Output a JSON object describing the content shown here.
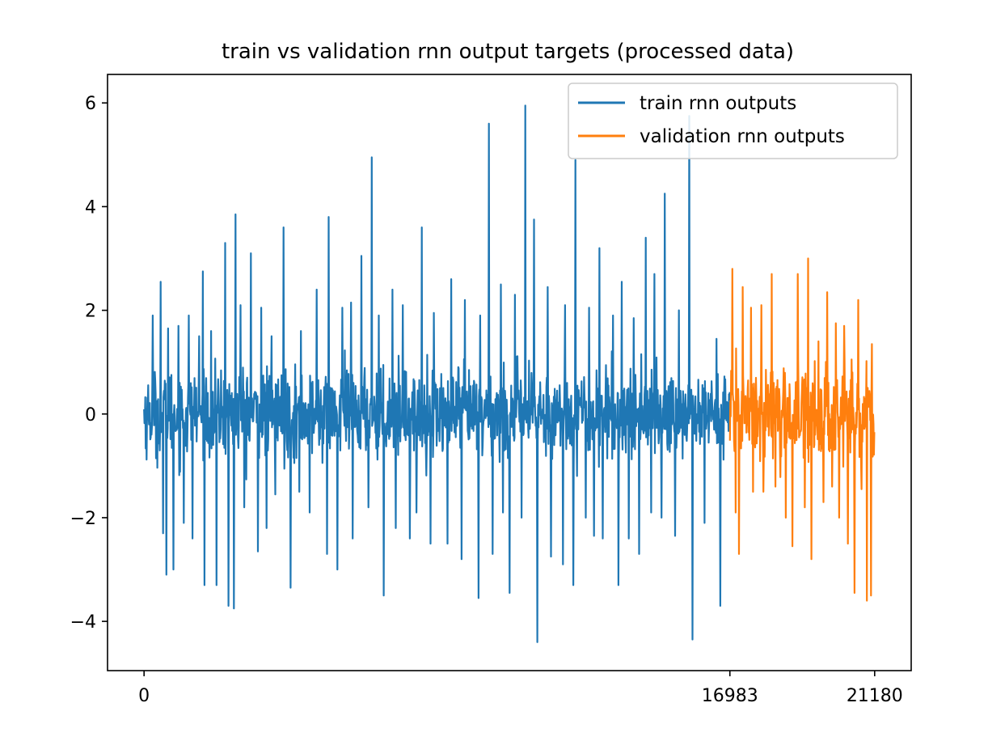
{
  "chart_data": {
    "type": "line",
    "title": "train vs validation rnn output targets (processed data)",
    "xlabel": "",
    "ylabel": "",
    "xlim": [
      -1059,
      22239
    ],
    "ylim": [
      -4.95,
      6.55
    ],
    "x_ticks": [
      0,
      16983,
      21180
    ],
    "y_ticks": [
      -4,
      -2,
      0,
      2,
      4,
      6
    ],
    "y_tick_labels": [
      "−4",
      "−2",
      "0",
      "2",
      "4",
      "6"
    ],
    "x_tick_labels": [
      "0",
      "16983",
      "21180"
    ],
    "grid": false,
    "legend": "top-right",
    "series": [
      {
        "name": "train rnn outputs",
        "color": "#1f77b4",
        "x_start": 0,
        "x_end": 16983,
        "noise_std": 0.75,
        "peaks": [
          [
            250,
            1.9
          ],
          [
            480,
            2.55
          ],
          [
            700,
            1.65
          ],
          [
            1000,
            1.7
          ],
          [
            1300,
            1.9
          ],
          [
            1600,
            1.5
          ],
          [
            1700,
            2.75
          ],
          [
            1950,
            1.6
          ],
          [
            2350,
            3.3
          ],
          [
            2650,
            3.85
          ],
          [
            2800,
            2.1
          ],
          [
            3100,
            3.1
          ],
          [
            3400,
            2.05
          ],
          [
            3700,
            1.5
          ],
          [
            4050,
            3.6
          ],
          [
            4250,
            2.5
          ],
          [
            4550,
            1.6
          ],
          [
            5000,
            2.4
          ],
          [
            5350,
            3.8
          ],
          [
            5750,
            2.05
          ],
          [
            6000,
            2.15
          ],
          [
            6300,
            3.05
          ],
          [
            6600,
            4.95
          ],
          [
            6800,
            1.9
          ],
          [
            7200,
            2.4
          ],
          [
            7500,
            2.1
          ],
          [
            8050,
            3.6
          ],
          [
            8400,
            1.95
          ],
          [
            8900,
            2.6
          ],
          [
            9300,
            2.2
          ],
          [
            9750,
            1.9
          ],
          [
            10000,
            5.6
          ],
          [
            10350,
            2.5
          ],
          [
            10750,
            2.3
          ],
          [
            11050,
            5.95
          ],
          [
            11300,
            3.75
          ],
          [
            11700,
            2.45
          ],
          [
            12200,
            2.1
          ],
          [
            12500,
            4.9
          ],
          [
            12900,
            2.05
          ],
          [
            13200,
            3.2
          ],
          [
            13600,
            1.9
          ],
          [
            13850,
            2.55
          ],
          [
            14200,
            1.85
          ],
          [
            14550,
            3.4
          ],
          [
            14800,
            2.7
          ],
          [
            15100,
            4.25
          ],
          [
            15500,
            2.0
          ],
          [
            15800,
            5.75
          ],
          [
            16250,
            1.7
          ],
          [
            16600,
            1.45
          ]
        ],
        "troughs": [
          [
            550,
            -2.3
          ],
          [
            650,
            -3.1
          ],
          [
            850,
            -3.0
          ],
          [
            1150,
            -2.1
          ],
          [
            1400,
            -2.4
          ],
          [
            1750,
            -3.3
          ],
          [
            2100,
            -3.3
          ],
          [
            2450,
            -3.7
          ],
          [
            2600,
            -3.75
          ],
          [
            2900,
            -1.8
          ],
          [
            3300,
            -2.65
          ],
          [
            3550,
            -2.2
          ],
          [
            3800,
            -1.55
          ],
          [
            4250,
            -3.35
          ],
          [
            4500,
            -1.5
          ],
          [
            4800,
            -1.9
          ],
          [
            5300,
            -2.7
          ],
          [
            5600,
            -3.0
          ],
          [
            6050,
            -2.4
          ],
          [
            6500,
            -1.8
          ],
          [
            6950,
            -3.5
          ],
          [
            7300,
            -2.2
          ],
          [
            7700,
            -2.4
          ],
          [
            7900,
            -1.9
          ],
          [
            8300,
            -2.5
          ],
          [
            8800,
            -2.5
          ],
          [
            9200,
            -2.8
          ],
          [
            9700,
            -3.55
          ],
          [
            10100,
            -2.7
          ],
          [
            10400,
            -1.9
          ],
          [
            10600,
            -3.45
          ],
          [
            10950,
            -2.0
          ],
          [
            11400,
            -4.4
          ],
          [
            11800,
            -2.75
          ],
          [
            12150,
            -2.9
          ],
          [
            12450,
            -3.3
          ],
          [
            12800,
            -2.0
          ],
          [
            13050,
            -2.35
          ],
          [
            13300,
            -2.4
          ],
          [
            13750,
            -3.3
          ],
          [
            14050,
            -2.4
          ],
          [
            14350,
            -2.7
          ],
          [
            14700,
            -1.9
          ],
          [
            15000,
            -2.0
          ],
          [
            15400,
            -2.35
          ],
          [
            15900,
            -4.35
          ],
          [
            16250,
            -2.1
          ],
          [
            16700,
            -3.7
          ]
        ]
      },
      {
        "name": "validation rnn outputs",
        "color": "#ff7f0e",
        "x_start": 16983,
        "x_end": 21180,
        "noise_std": 0.8,
        "peaks": [
          [
            17050,
            2.8
          ],
          [
            17350,
            2.45
          ],
          [
            17600,
            2.05
          ],
          [
            17900,
            2.1
          ],
          [
            18200,
            2.7
          ],
          [
            18600,
            2.3
          ],
          [
            18950,
            2.7
          ],
          [
            19250,
            3.0
          ],
          [
            19550,
            1.4
          ],
          [
            19800,
            2.35
          ],
          [
            20050,
            1.75
          ],
          [
            20300,
            1.7
          ],
          [
            20700,
            2.2
          ],
          [
            20950,
            1.4
          ],
          [
            21100,
            1.35
          ]
        ],
        "troughs": [
          [
            17150,
            -1.9
          ],
          [
            17250,
            -2.7
          ],
          [
            17650,
            -1.5
          ],
          [
            17950,
            -1.5
          ],
          [
            18300,
            -1.4
          ],
          [
            18600,
            -2.0
          ],
          [
            18800,
            -2.55
          ],
          [
            19150,
            -1.8
          ],
          [
            19350,
            -2.8
          ],
          [
            19700,
            -1.7
          ],
          [
            19950,
            -1.4
          ],
          [
            20150,
            -2.0
          ],
          [
            20400,
            -2.5
          ],
          [
            20600,
            -3.45
          ],
          [
            20800,
            -1.45
          ],
          [
            20950,
            -3.6
          ],
          [
            21080,
            -3.5
          ]
        ]
      }
    ]
  }
}
